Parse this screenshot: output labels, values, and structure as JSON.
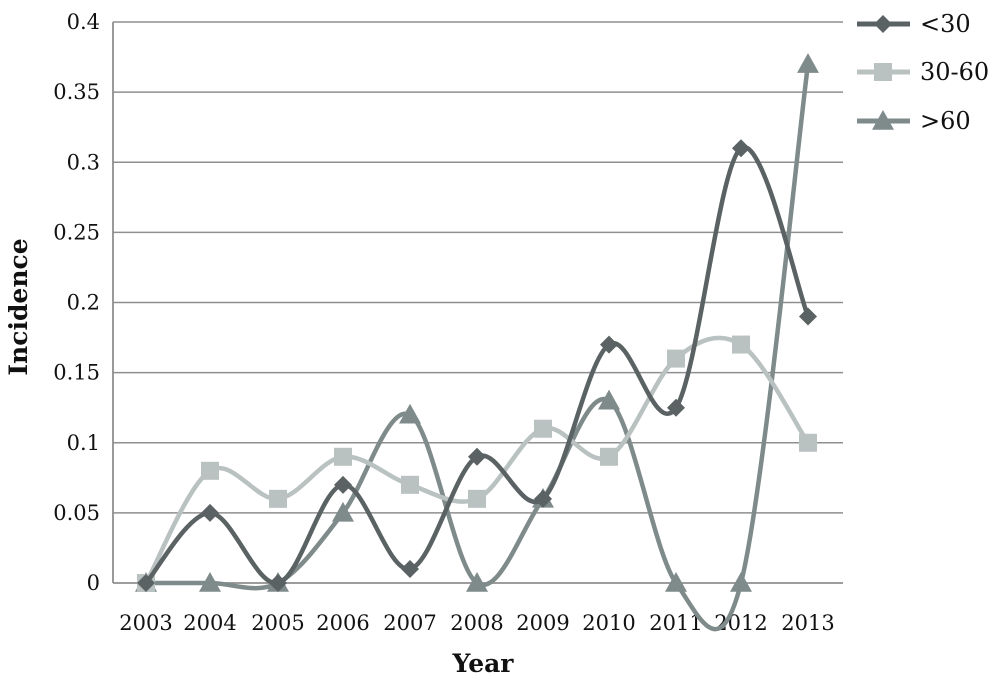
{
  "chart_data": {
    "type": "line",
    "title": "",
    "xlabel": "Year",
    "ylabel": "Incidence",
    "categories": [
      "2003",
      "2004",
      "2005",
      "2006",
      "2007",
      "2008",
      "2009",
      "2010",
      "2011",
      "2012",
      "2013"
    ],
    "ylim": [
      0,
      0.4
    ],
    "yticks": [
      "0",
      "0.05",
      "0.1",
      "0.15",
      "0.2",
      "0.25",
      "0.3",
      "0.35",
      "0.4"
    ],
    "grid": true,
    "smooth": true,
    "legend_position": "right",
    "series": [
      {
        "name": "<30",
        "marker": "diamond",
        "color": "#5b6263",
        "values": [
          0,
          0.05,
          0,
          0.07,
          0.01,
          0.09,
          0.06,
          0.17,
          0.125,
          0.31,
          0.19
        ]
      },
      {
        "name": "30-60",
        "marker": "square",
        "color": "#b9c1c1",
        "values": [
          0,
          0.08,
          0.06,
          0.09,
          0.07,
          0.06,
          0.11,
          0.09,
          0.16,
          0.17,
          0.1
        ]
      },
      {
        "name": ">60",
        "marker": "triangle",
        "color": "#7f8b8b",
        "values": [
          0,
          0,
          0,
          0.05,
          0.12,
          0,
          0.06,
          0.13,
          0,
          0,
          0.37
        ]
      }
    ]
  }
}
